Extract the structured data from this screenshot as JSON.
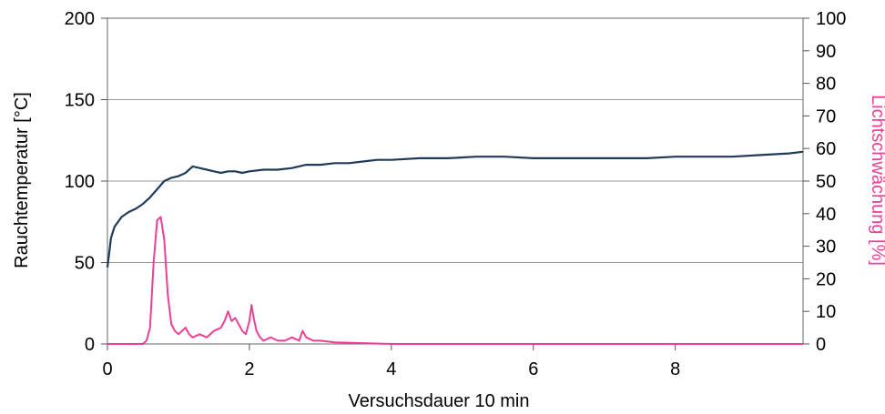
{
  "chart_data": {
    "type": "line",
    "title": "",
    "xlabel": "Versuchsdauer 10 min",
    "ylabel": "Rauchtemperatur [°C]",
    "y2label": "Lichtschwächung [%]",
    "xlim": [
      0,
      9.8
    ],
    "ylim": [
      0,
      200
    ],
    "y2lim": [
      0,
      100
    ],
    "x_ticks": [
      "0",
      "2",
      "4",
      "6",
      "8"
    ],
    "y_ticks": [
      "0",
      "50",
      "100",
      "150",
      "200"
    ],
    "y2_ticks": [
      "0",
      "10",
      "20",
      "30",
      "40",
      "50",
      "60",
      "70",
      "80",
      "90",
      "100"
    ],
    "grid": true,
    "legend": "none",
    "series": [
      {
        "axis": "left",
        "color": "#1f3b5a",
        "x": [
          0,
          0.05,
          0.1,
          0.2,
          0.3,
          0.4,
          0.5,
          0.6,
          0.7,
          0.8,
          0.9,
          1.0,
          1.1,
          1.2,
          1.3,
          1.4,
          1.5,
          1.6,
          1.7,
          1.8,
          1.9,
          2.0,
          2.2,
          2.4,
          2.6,
          2.8,
          3.0,
          3.2,
          3.4,
          3.6,
          3.8,
          4.0,
          4.4,
          4.8,
          5.2,
          5.6,
          6.0,
          6.4,
          6.8,
          7.2,
          7.6,
          8.0,
          8.4,
          8.8,
          9.2,
          9.6,
          9.8
        ],
        "values": [
          47,
          65,
          72,
          78,
          81,
          83,
          86,
          90,
          95,
          100,
          102,
          103,
          105,
          109,
          108,
          107,
          106,
          105,
          106,
          106,
          105,
          106,
          107,
          107,
          108,
          110,
          110,
          111,
          111,
          112,
          113,
          113,
          114,
          114,
          115,
          115,
          114,
          114,
          114,
          114,
          114,
          115,
          115,
          115,
          116,
          117,
          118
        ]
      },
      {
        "axis": "right",
        "color": "#ee3f96",
        "x": [
          0,
          0.5,
          0.55,
          0.6,
          0.65,
          0.7,
          0.75,
          0.8,
          0.85,
          0.9,
          0.95,
          1.0,
          1.05,
          1.1,
          1.15,
          1.2,
          1.3,
          1.4,
          1.5,
          1.6,
          1.65,
          1.7,
          1.75,
          1.8,
          1.85,
          1.9,
          1.95,
          2.0,
          2.03,
          2.06,
          2.1,
          2.15,
          2.2,
          2.3,
          2.4,
          2.5,
          2.6,
          2.7,
          2.75,
          2.8,
          2.9,
          3.0,
          3.2,
          4.0,
          6.0,
          8.0,
          9.8
        ],
        "values": [
          0,
          0,
          1,
          5,
          25,
          38,
          39,
          32,
          15,
          6,
          4,
          3,
          4,
          5,
          3,
          2,
          3,
          2,
          4,
          5,
          7,
          10,
          7,
          8,
          6,
          4,
          3,
          7,
          12,
          8,
          4,
          2,
          1,
          2,
          1,
          1,
          2,
          1,
          4,
          2,
          1,
          1,
          0.5,
          0,
          0,
          0,
          0
        ]
      }
    ]
  }
}
